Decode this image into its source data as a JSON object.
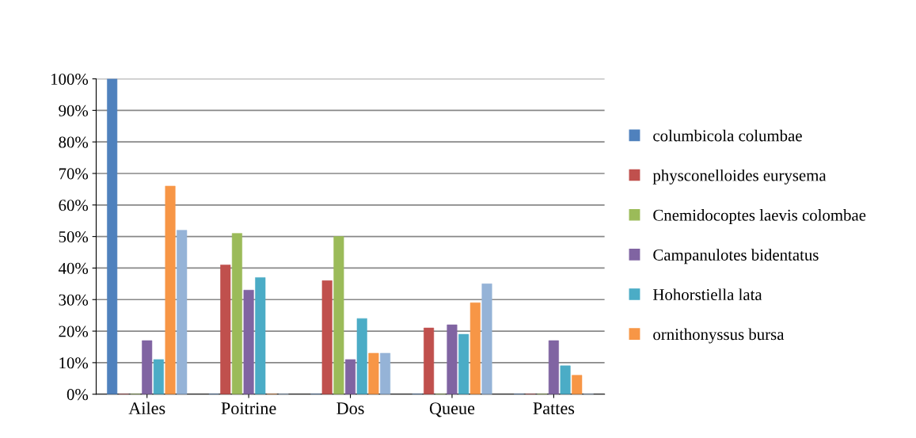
{
  "chart_data": {
    "type": "bar",
    "categories": [
      "Ailes",
      "Poitrine",
      "Dos",
      "Queue",
      "Pattes"
    ],
    "series": [
      {
        "name": "columbicola columbae",
        "color": "#4f81bd",
        "values": [
          100,
          0,
          0,
          0,
          0
        ]
      },
      {
        "name": "physconelloides eurysema",
        "color": "#c0504d",
        "values": [
          0,
          41,
          36,
          21,
          0
        ]
      },
      {
        "name": "Cnemidocoptes laevis colombae",
        "color": "#9bbb59",
        "values": [
          0,
          51,
          50,
          0,
          0
        ]
      },
      {
        "name": "Campanulotes bidentatus",
        "color": "#8064a2",
        "values": [
          17,
          33,
          11,
          22,
          17
        ]
      },
      {
        "name": "Hohorstiella lata",
        "color": "#4bacc6",
        "values": [
          11,
          37,
          24,
          19,
          9
        ]
      },
      {
        "name": "ornithonyssus bursa",
        "color": "#f79646",
        "values": [
          66,
          0,
          13,
          29,
          6
        ]
      },
      {
        "color": "#95b3d7",
        "values": [
          52,
          0,
          13,
          35,
          0
        ]
      }
    ],
    "ylim": [
      0,
      100
    ],
    "yticks": [
      {
        "value": 0,
        "label": "0%"
      },
      {
        "value": 10,
        "label": "10%"
      },
      {
        "value": 20,
        "label": "20%"
      },
      {
        "value": 30,
        "label": "30%"
      },
      {
        "value": 40,
        "label": "40%"
      },
      {
        "value": 50,
        "label": "50%"
      },
      {
        "value": 60,
        "label": "60%"
      },
      {
        "value": 70,
        "label": "70%"
      },
      {
        "value": 80,
        "label": "80%"
      },
      {
        "value": 90,
        "label": "90%"
      },
      {
        "value": 100,
        "label": "100%"
      }
    ],
    "grid": "y",
    "legend": "right"
  }
}
